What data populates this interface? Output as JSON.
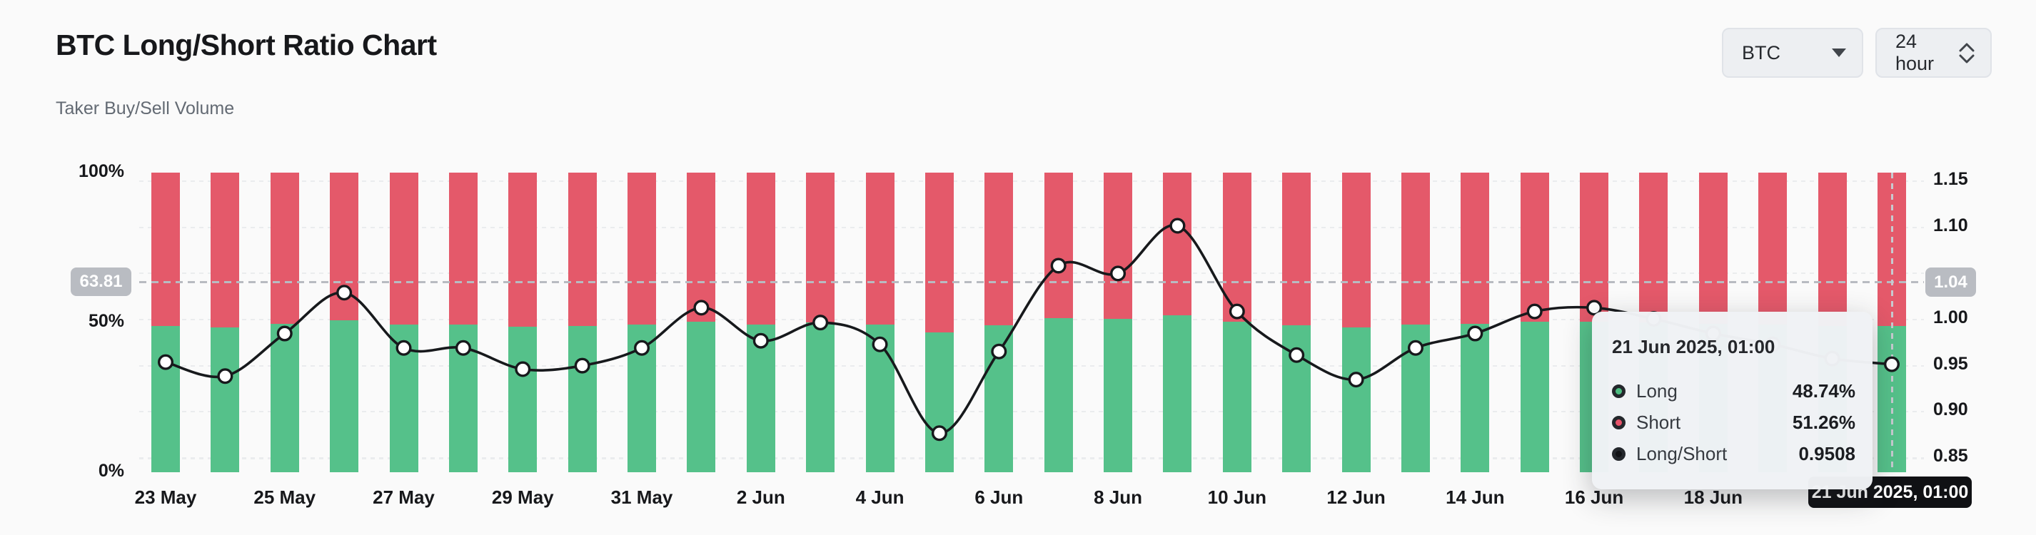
{
  "header": {
    "title": "BTC Long/Short Ratio Chart",
    "subtitle": "Taker Buy/Sell Volume",
    "symbol_select": {
      "value": "BTC"
    },
    "interval_select": {
      "value": "24 hour"
    }
  },
  "colors": {
    "long_green": "#55c18a",
    "short_red": "#e4596a",
    "ratio_line": "#17191c",
    "axis_pill_gray": "#b9bcc2",
    "crosshair_pill_black": "#101114"
  },
  "tooltip": {
    "date": "21 Jun 2025, 01:00",
    "rows": [
      {
        "label": "Long",
        "value": "48.74%",
        "color": "#4cbd80"
      },
      {
        "label": "Short",
        "value": "51.26%",
        "color": "#e8536a"
      },
      {
        "label": "Long/Short",
        "value": "0.9508",
        "color": "#111215"
      }
    ]
  },
  "crosshair_label": "21 Jun 2025, 01:00",
  "chart_data": {
    "type": "bar",
    "subtype": "stacked-percent-bars-with-ratio-line",
    "title": "BTC Long/Short Ratio Chart",
    "interval": "24 hour",
    "legend_position": "none",
    "grid": "dashed-horizontal",
    "series": [
      {
        "name": "Long",
        "type": "bar",
        "axis": "left",
        "color": "#55c18a"
      },
      {
        "name": "Short",
        "type": "bar",
        "axis": "left",
        "color": "#e4596a"
      },
      {
        "name": "Long/Short",
        "type": "line",
        "axis": "right",
        "color": "#17191c"
      }
    ],
    "left_axis": {
      "ticks": [
        "100%",
        "50%",
        "0%"
      ],
      "min": 0,
      "max": 100,
      "highlight_value": "63.81"
    },
    "right_axis": {
      "ticks": [
        1.15,
        1.1,
        1.0,
        0.95,
        0.9,
        0.85
      ],
      "gridline_values": [
        1.15,
        1.1,
        1.05,
        1.0,
        0.95,
        0.9,
        0.85
      ],
      "highlight_value": "1.04"
    },
    "x_ticks": [
      {
        "i": 0,
        "label": "23 May"
      },
      {
        "i": 2,
        "label": "25 May"
      },
      {
        "i": 4,
        "label": "27 May"
      },
      {
        "i": 6,
        "label": "29 May"
      },
      {
        "i": 8,
        "label": "31 May"
      },
      {
        "i": 10,
        "label": "2 Jun"
      },
      {
        "i": 12,
        "label": "4 Jun"
      },
      {
        "i": 14,
        "label": "6 Jun"
      },
      {
        "i": 16,
        "label": "8 Jun"
      },
      {
        "i": 18,
        "label": "10 Jun"
      },
      {
        "i": 20,
        "label": "12 Jun"
      },
      {
        "i": 22,
        "label": "14 Jun"
      },
      {
        "i": 24,
        "label": "16 Jun"
      },
      {
        "i": 26,
        "label": "18 Jun"
      }
    ],
    "hovered_point_index": 29,
    "points": [
      {
        "date": "23 May",
        "long_pct": 48.8
      },
      {
        "date": "24 May",
        "long_pct": 48.4
      },
      {
        "date": "25 May",
        "long_pct": 49.6
      },
      {
        "date": "26 May",
        "long_pct": 50.7
      },
      {
        "date": "27 May",
        "long_pct": 49.2
      },
      {
        "date": "28 May",
        "long_pct": 49.2
      },
      {
        "date": "29 May",
        "long_pct": 48.6
      },
      {
        "date": "30 May",
        "long_pct": 48.7
      },
      {
        "date": "31 May",
        "long_pct": 49.2
      },
      {
        "date": "1 Jun",
        "long_pct": 50.3
      },
      {
        "date": "2 Jun",
        "long_pct": 49.4
      },
      {
        "date": "3 Jun",
        "long_pct": 49.9
      },
      {
        "date": "4 Jun",
        "long_pct": 49.3
      },
      {
        "date": "5 Jun",
        "long_pct": 46.7
      },
      {
        "date": "6 Jun",
        "long_pct": 49.1
      },
      {
        "date": "7 Jun",
        "long_pct": 51.4
      },
      {
        "date": "8 Jun",
        "long_pct": 51.2
      },
      {
        "date": "9 Jun",
        "long_pct": 52.4
      },
      {
        "date": "10 Jun",
        "long_pct": 50.2
      },
      {
        "date": "11 Jun",
        "long_pct": 49.0
      },
      {
        "date": "12 Jun",
        "long_pct": 48.3
      },
      {
        "date": "13 Jun",
        "long_pct": 49.2
      },
      {
        "date": "14 Jun",
        "long_pct": 49.6
      },
      {
        "date": "15 Jun",
        "long_pct": 50.2
      },
      {
        "date": "16 Jun",
        "long_pct": 50.3
      },
      {
        "date": "17 Jun",
        "long_pct": 50.0
      },
      {
        "date": "18 Jun",
        "long_pct": 49.6
      },
      {
        "date": "19 Jun",
        "long_pct": 49.3
      },
      {
        "date": "20 Jun",
        "long_pct": 48.9
      },
      {
        "date": "21 Jun",
        "long_pct": 48.74
      }
    ]
  }
}
